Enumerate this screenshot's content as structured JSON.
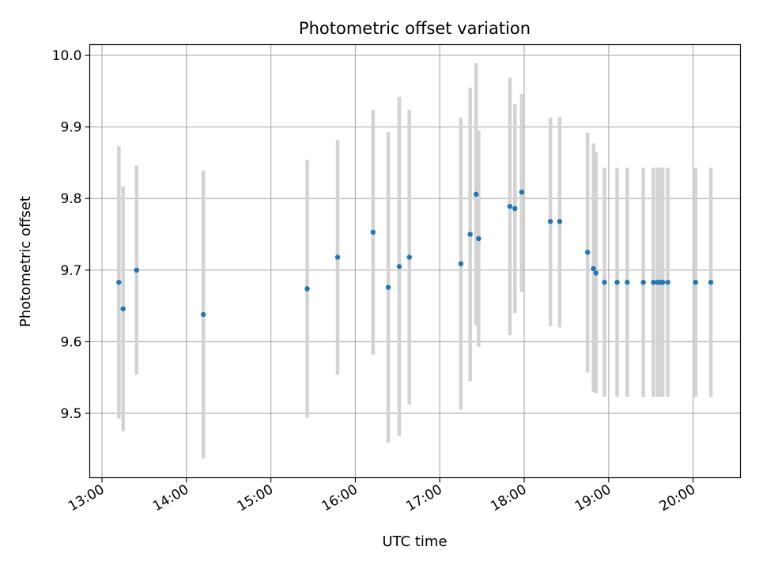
{
  "chart_data": {
    "type": "scatter",
    "title": "Photometric offset variation",
    "xlabel": "UTC time",
    "ylabel": "Photometric offset",
    "x_tick_labels": [
      "13:00",
      "14:00",
      "15:00",
      "16:00",
      "17:00",
      "18:00",
      "19:00",
      "20:00"
    ],
    "y_tick_labels": [
      "9.5",
      "9.6",
      "9.7",
      "9.8",
      "9.9",
      "10.0"
    ],
    "x_ticks": [
      13,
      14,
      15,
      16,
      17,
      18,
      19,
      20
    ],
    "y_ticks": [
      9.5,
      9.6,
      9.7,
      9.8,
      9.9,
      10.0
    ],
    "xlim": [
      12.855,
      20.56
    ],
    "ylim": [
      9.41,
      10.015
    ],
    "grid": true,
    "colors": {
      "point": "#1f77b4",
      "errorbar": "#d3d3d3",
      "grid": "#b0b0b0"
    },
    "points": [
      {
        "x": 13.2,
        "y": 9.683,
        "low": 9.493,
        "high": 9.873
      },
      {
        "x": 13.25,
        "y": 9.646,
        "low": 9.475,
        "high": 9.817
      },
      {
        "x": 13.41,
        "y": 9.7,
        "low": 9.554,
        "high": 9.846
      },
      {
        "x": 14.2,
        "y": 9.638,
        "low": 9.437,
        "high": 9.839
      },
      {
        "x": 15.43,
        "y": 9.674,
        "low": 9.494,
        "high": 9.854
      },
      {
        "x": 15.79,
        "y": 9.718,
        "low": 9.554,
        "high": 9.882
      },
      {
        "x": 16.21,
        "y": 9.753,
        "low": 9.582,
        "high": 9.924
      },
      {
        "x": 16.39,
        "y": 9.676,
        "low": 9.459,
        "high": 9.893
      },
      {
        "x": 16.52,
        "y": 9.705,
        "low": 9.468,
        "high": 9.942
      },
      {
        "x": 16.64,
        "y": 9.718,
        "low": 9.512,
        "high": 9.924
      },
      {
        "x": 17.25,
        "y": 9.709,
        "low": 9.505,
        "high": 9.913
      },
      {
        "x": 17.36,
        "y": 9.75,
        "low": 9.545,
        "high": 9.955
      },
      {
        "x": 17.43,
        "y": 9.806,
        "low": 9.623,
        "high": 9.989
      },
      {
        "x": 17.46,
        "y": 9.744,
        "low": 9.593,
        "high": 9.895
      },
      {
        "x": 17.83,
        "y": 9.789,
        "low": 9.609,
        "high": 9.969
      },
      {
        "x": 17.89,
        "y": 9.786,
        "low": 9.64,
        "high": 9.932
      },
      {
        "x": 17.97,
        "y": 9.809,
        "low": 9.67,
        "high": 9.946
      },
      {
        "x": 18.31,
        "y": 9.768,
        "low": 9.622,
        "high": 9.913
      },
      {
        "x": 18.42,
        "y": 9.768,
        "low": 9.62,
        "high": 9.914
      },
      {
        "x": 18.75,
        "y": 9.725,
        "low": 9.557,
        "high": 9.892
      },
      {
        "x": 18.82,
        "y": 9.702,
        "low": 9.53,
        "high": 9.877
      },
      {
        "x": 18.85,
        "y": 9.696,
        "low": 9.528,
        "high": 9.865
      },
      {
        "x": 18.95,
        "y": 9.683,
        "low": 9.523,
        "high": 9.843
      },
      {
        "x": 19.1,
        "y": 9.683,
        "low": 9.523,
        "high": 9.843
      },
      {
        "x": 19.22,
        "y": 9.683,
        "low": 9.523,
        "high": 9.843
      },
      {
        "x": 19.41,
        "y": 9.683,
        "low": 9.523,
        "high": 9.843
      },
      {
        "x": 19.53,
        "y": 9.683,
        "low": 9.523,
        "high": 9.843
      },
      {
        "x": 19.58,
        "y": 9.683,
        "low": 9.523,
        "high": 9.843
      },
      {
        "x": 19.62,
        "y": 9.683,
        "low": 9.523,
        "high": 9.843
      },
      {
        "x": 19.64,
        "y": 9.683,
        "low": 9.523,
        "high": 9.843
      },
      {
        "x": 19.7,
        "y": 9.683,
        "low": 9.523,
        "high": 9.843
      },
      {
        "x": 20.03,
        "y": 9.683,
        "low": 9.523,
        "high": 9.843
      },
      {
        "x": 20.21,
        "y": 9.683,
        "low": 9.523,
        "high": 9.843
      }
    ]
  }
}
